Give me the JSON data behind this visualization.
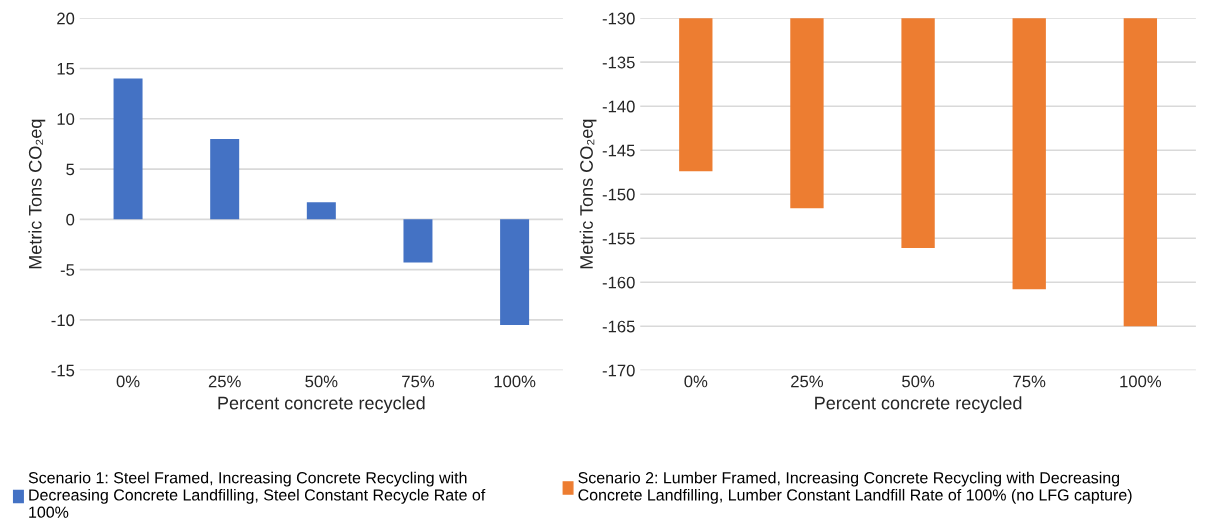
{
  "chart_data": [
    {
      "type": "bar",
      "categories": [
        "0%",
        "25%",
        "50%",
        "75%",
        "100%"
      ],
      "xlabel": "Percent concrete recycled",
      "ylabel": "Metric Tons CO₂eq",
      "series": [
        {
          "name": "Scenario 1: Steel Framed, Increasing Concrete Recycling with Decreasing Concrete Landfilling, Steel Constant Recycle Rate of 100%",
          "color": "#4472c4",
          "values": [
            14.0,
            8.0,
            1.7,
            -4.3,
            -10.5
          ]
        }
      ],
      "ylim": [
        -15,
        20
      ],
      "yticks": [
        -15,
        -10,
        -5,
        0,
        5,
        10,
        15,
        20
      ],
      "grid": "y",
      "legend": "bottom"
    },
    {
      "type": "bar",
      "categories": [
        "0%",
        "25%",
        "50%",
        "75%",
        "100%"
      ],
      "xlabel": "Percent concrete recycled",
      "ylabel": "Metric Tons CO₂eq",
      "series": [
        {
          "name": "Scenario 2: Lumber Framed, Increasing Concrete Recycling with Decreasing Concrete Landfilling, Lumber Constant Landfill Rate of 100% (no LFG capture)",
          "color": "#ed7d31",
          "values": [
            -147.4,
            -151.6,
            -156.1,
            -160.8,
            -165.0
          ]
        }
      ],
      "ylim": [
        -170,
        -130
      ],
      "yticks": [
        -170,
        -165,
        -160,
        -155,
        -150,
        -145,
        -140,
        -135,
        -130
      ],
      "grid": "y",
      "legend": "bottom"
    }
  ]
}
